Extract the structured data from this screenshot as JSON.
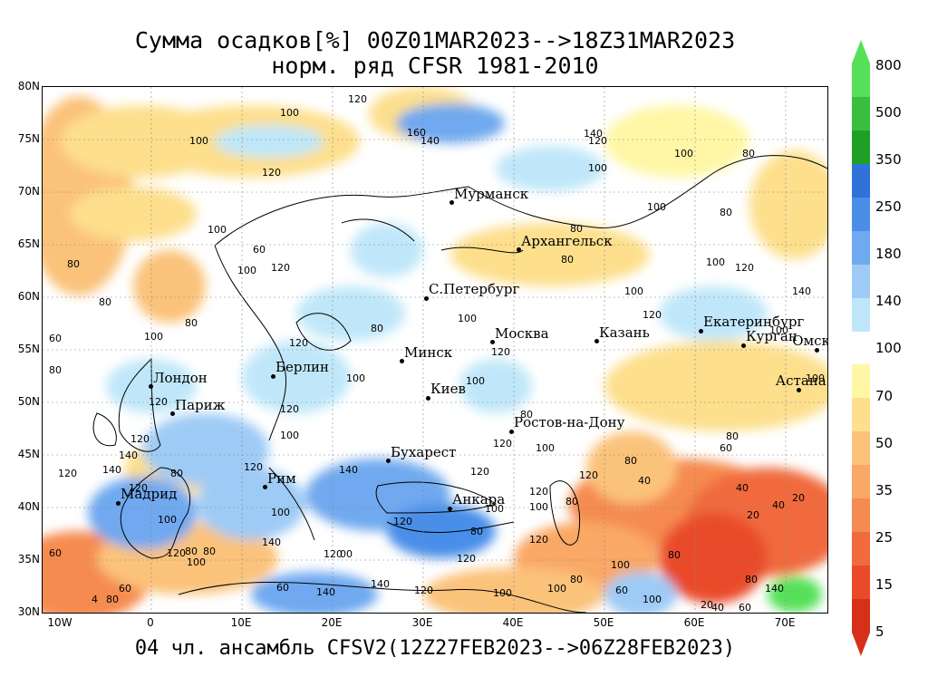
{
  "title_line1": "Сумма осадков[%] 00Z01MAR2023-->18Z31MAR2023",
  "title_line2": "норм. ряд CFSR 1981-2010",
  "footer": "04 чл. ансамбль CFSV2(12Z27FEB2023-->06Z28FEB2023)",
  "lat_labels": [
    "80N",
    "75N",
    "70N",
    "65N",
    "60N",
    "55N",
    "50N",
    "45N",
    "40N",
    "35N",
    "30N"
  ],
  "lon_labels": [
    "10W",
    "0",
    "10E",
    "20E",
    "30E",
    "40E",
    "50E",
    "60E",
    "70E"
  ],
  "cities": [
    {
      "name": "Мурманск",
      "lon": 33.1,
      "lat": 69.0
    },
    {
      "name": "Архангельск",
      "lon": 40.5,
      "lat": 64.5
    },
    {
      "name": "С.Петербург",
      "lon": 30.3,
      "lat": 59.9
    },
    {
      "name": "Москва",
      "lon": 37.6,
      "lat": 55.7
    },
    {
      "name": "Казань",
      "lon": 49.1,
      "lat": 55.8
    },
    {
      "name": "Екатеринбург",
      "lon": 60.6,
      "lat": 56.8
    },
    {
      "name": "Курган",
      "lon": 65.3,
      "lat": 55.4
    },
    {
      "name": "Омск",
      "lon": 73.4,
      "lat": 55.0
    },
    {
      "name": "Астана",
      "lon": 71.4,
      "lat": 51.2
    },
    {
      "name": "Минск",
      "lon": 27.6,
      "lat": 53.9
    },
    {
      "name": "Берлин",
      "lon": 13.4,
      "lat": 52.5
    },
    {
      "name": "Киев",
      "lon": 30.5,
      "lat": 50.4
    },
    {
      "name": "Лондон",
      "lon": -0.1,
      "lat": 51.5
    },
    {
      "name": "Париж",
      "lon": 2.3,
      "lat": 48.9
    },
    {
      "name": "Ростов-на-Дону",
      "lon": 39.7,
      "lat": 47.2
    },
    {
      "name": "Бухарест",
      "lon": 26.1,
      "lat": 44.4
    },
    {
      "name": "Рим",
      "lon": 12.5,
      "lat": 41.9
    },
    {
      "name": "Мадрид",
      "lon": -3.7,
      "lat": 40.4
    },
    {
      "name": "Анкара",
      "lon": 32.9,
      "lat": 39.9
    }
  ],
  "contour_labels": [
    {
      "t": "120",
      "lon": 22.5,
      "lat": 78.8
    },
    {
      "t": "100",
      "lon": 15,
      "lat": 77.5
    },
    {
      "t": "160",
      "lon": 29,
      "lat": 75.6
    },
    {
      "t": "140",
      "lon": 30.5,
      "lat": 74.8
    },
    {
      "t": "140",
      "lon": 48.5,
      "lat": 75.5
    },
    {
      "t": "120",
      "lon": 49,
      "lat": 74.8
    },
    {
      "t": "100",
      "lon": 5,
      "lat": 74.8
    },
    {
      "t": "100",
      "lon": 49,
      "lat": 72.2
    },
    {
      "t": "100",
      "lon": 58.5,
      "lat": 73.6
    },
    {
      "t": "80",
      "lon": 66,
      "lat": 73.6
    },
    {
      "t": "120",
      "lon": 13,
      "lat": 71.8
    },
    {
      "t": "100",
      "lon": 7,
      "lat": 66.4
    },
    {
      "t": "80",
      "lon": -8.5,
      "lat": 63.1
    },
    {
      "t": "60",
      "lon": 12,
      "lat": 64.5
    },
    {
      "t": "100",
      "lon": 10.3,
      "lat": 62.5
    },
    {
      "t": "120",
      "lon": 14,
      "lat": 62.8
    },
    {
      "t": "80",
      "lon": 47,
      "lat": 66.5
    },
    {
      "t": "80",
      "lon": 46,
      "lat": 63.5
    },
    {
      "t": "100",
      "lon": 55.5,
      "lat": 68.5
    },
    {
      "t": "80",
      "lon": 63.5,
      "lat": 68
    },
    {
      "t": "100",
      "lon": 62,
      "lat": 63.3
    },
    {
      "t": "120",
      "lon": 65.2,
      "lat": 62.8
    },
    {
      "t": "140",
      "lon": 71.5,
      "lat": 60.5
    },
    {
      "t": "100",
      "lon": 53,
      "lat": 60.5
    },
    {
      "t": "120",
      "lon": 55,
      "lat": 58.3
    },
    {
      "t": "100",
      "lon": 34.6,
      "lat": 57.9
    },
    {
      "t": "80",
      "lon": -5,
      "lat": 59.5
    },
    {
      "t": "80",
      "lon": 4.5,
      "lat": 57.5
    },
    {
      "t": "100",
      "lon": 0,
      "lat": 56.2
    },
    {
      "t": "60",
      "lon": -10.5,
      "lat": 56
    },
    {
      "t": "120",
      "lon": 16,
      "lat": 55.6
    },
    {
      "t": "80",
      "lon": 25,
      "lat": 57
    },
    {
      "t": "120",
      "lon": 38.3,
      "lat": 54.7
    },
    {
      "t": "100",
      "lon": 22.3,
      "lat": 52.2
    },
    {
      "t": "100",
      "lon": 35.5,
      "lat": 52
    },
    {
      "t": "100",
      "lon": 73.5,
      "lat": 52.2
    },
    {
      "t": "100",
      "lon": 69,
      "lat": 56.8
    },
    {
      "t": "80",
      "lon": -10.5,
      "lat": 53
    },
    {
      "t": "120",
      "lon": 0.5,
      "lat": 50
    },
    {
      "t": "120",
      "lon": 15,
      "lat": 49.3
    },
    {
      "t": "100",
      "lon": 15,
      "lat": 46.8
    },
    {
      "t": "120",
      "lon": -1.5,
      "lat": 46.5
    },
    {
      "t": "140",
      "lon": -2.8,
      "lat": 44.9
    },
    {
      "t": "120",
      "lon": -9.5,
      "lat": 43.2
    },
    {
      "t": "140",
      "lon": -4.6,
      "lat": 43.5
    },
    {
      "t": "120",
      "lon": -1.7,
      "lat": 41.8
    },
    {
      "t": "80",
      "lon": 2.9,
      "lat": 43.2
    },
    {
      "t": "120",
      "lon": 11,
      "lat": 43.8
    },
    {
      "t": "140",
      "lon": 21.5,
      "lat": 43.5
    },
    {
      "t": "120",
      "lon": 36,
      "lat": 43.4
    },
    {
      "t": "120",
      "lon": 38.5,
      "lat": 46
    },
    {
      "t": "100",
      "lon": 43.2,
      "lat": 45.6
    },
    {
      "t": "80",
      "lon": 53,
      "lat": 44.4
    },
    {
      "t": "40",
      "lon": 54.5,
      "lat": 42.5
    },
    {
      "t": "80",
      "lon": 64.2,
      "lat": 46.7
    },
    {
      "t": "60",
      "lon": 63.5,
      "lat": 45.6
    },
    {
      "t": "40",
      "lon": 65.3,
      "lat": 41.8
    },
    {
      "t": "20",
      "lon": 66.5,
      "lat": 39.2
    },
    {
      "t": "40",
      "lon": 69.3,
      "lat": 40.2
    },
    {
      "t": "20",
      "lon": 71.5,
      "lat": 40.9
    },
    {
      "t": "100",
      "lon": 1.5,
      "lat": 38.8
    },
    {
      "t": "100",
      "lon": 14,
      "lat": 39.5
    },
    {
      "t": "100",
      "lon": 37.6,
      "lat": 39.8
    },
    {
      "t": "100",
      "lon": 42.5,
      "lat": 40
    },
    {
      "t": "120",
      "lon": 48,
      "lat": 43
    },
    {
      "t": "120",
      "lon": 42.5,
      "lat": 41.5
    },
    {
      "t": "80",
      "lon": 46.5,
      "lat": 40.5
    },
    {
      "t": "120",
      "lon": 27.5,
      "lat": 38.6
    },
    {
      "t": "80",
      "lon": 36,
      "lat": 37.7
    },
    {
      "t": "120",
      "lon": 42.5,
      "lat": 36.9
    },
    {
      "t": "120",
      "lon": 2.5,
      "lat": 35.6
    },
    {
      "t": "80",
      "lon": 4.5,
      "lat": 35.8
    },
    {
      "t": "80",
      "lon": 6.5,
      "lat": 35.8
    },
    {
      "t": "100",
      "lon": 4.7,
      "lat": 34.7
    },
    {
      "t": "140",
      "lon": 13,
      "lat": 36.6
    },
    {
      "t": "120",
      "lon": 19.8,
      "lat": 35.5
    },
    {
      "t": "00",
      "lon": 21.6,
      "lat": 35.5
    },
    {
      "t": "120",
      "lon": 34.5,
      "lat": 35.1
    },
    {
      "t": "80",
      "lon": 57.8,
      "lat": 35.4
    },
    {
      "t": "100",
      "lon": 51.5,
      "lat": 34.5
    },
    {
      "t": "60",
      "lon": -10.5,
      "lat": 35.6
    },
    {
      "t": "60",
      "lon": 14.6,
      "lat": 32.3
    },
    {
      "t": "140",
      "lon": 25,
      "lat": 32.7
    },
    {
      "t": "140",
      "lon": 19,
      "lat": 31.9
    },
    {
      "t": "120",
      "lon": 29.8,
      "lat": 32.1
    },
    {
      "t": "100",
      "lon": 38.5,
      "lat": 31.8
    },
    {
      "t": "100",
      "lon": 44.5,
      "lat": 32.2
    },
    {
      "t": "100",
      "lon": 55,
      "lat": 31.2
    },
    {
      "t": "80",
      "lon": 47,
      "lat": 33.1
    },
    {
      "t": "80",
      "lon": 66.3,
      "lat": 33.1
    },
    {
      "t": "60",
      "lon": 52,
      "lat": 32.1
    },
    {
      "t": "140",
      "lon": 68.5,
      "lat": 32.2
    },
    {
      "t": "4",
      "lon": -5.8,
      "lat": 31.2
    },
    {
      "t": "80",
      "lon": -4.2,
      "lat": 31.2
    },
    {
      "t": "60",
      "lon": -2.8,
      "lat": 32.2
    },
    {
      "t": "20",
      "lon": 61.4,
      "lat": 30.7
    },
    {
      "t": "40",
      "lon": 62.6,
      "lat": 30.4
    },
    {
      "t": "60",
      "lon": 65.6,
      "lat": 30.4
    },
    {
      "t": "80",
      "lon": 41.5,
      "lat": 48.8
    }
  ],
  "colorbar": {
    "ticks": [
      "800",
      "500",
      "350",
      "250",
      "180",
      "140",
      "100",
      "70",
      "50",
      "35",
      "25",
      "15",
      "5"
    ],
    "colors": [
      "#56e05a",
      "#39bf3d",
      "#1f9f26",
      "#2f72d9",
      "#4a8ee8",
      "#6fa9ef",
      "#9ecbf5",
      "#bfe7f9",
      "#ffffff",
      "#fff7a6",
      "#fddf8c",
      "#fbc27a",
      "#f9a865",
      "#f58b50",
      "#f06a3c",
      "#e94b2a",
      "#d63118"
    ],
    "top_label": "800",
    "bottom_label": "5"
  }
}
